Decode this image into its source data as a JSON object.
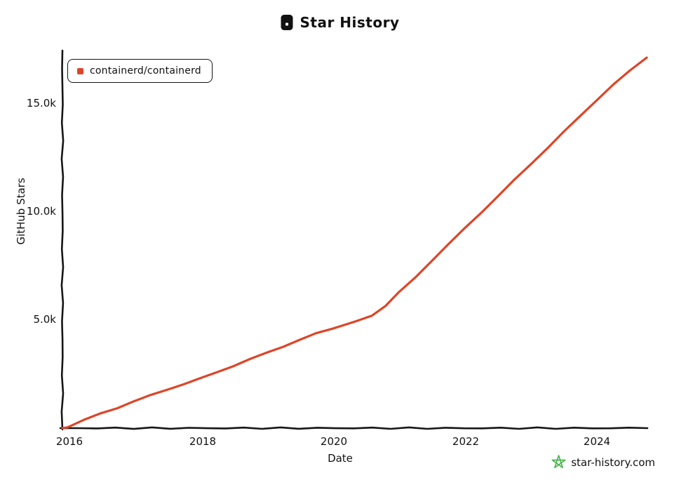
{
  "chart_data": {
    "type": "line",
    "title": "Star History",
    "xlabel": "Date",
    "ylabel": "GitHub Stars",
    "x_ticks": [
      "2016",
      "2018",
      "2020",
      "2022",
      "2024"
    ],
    "y_ticks": [
      "5.0k",
      "10.0k",
      "15.0k"
    ],
    "x_range": [
      2015.92,
      2024.75
    ],
    "y_range": [
      0,
      17500
    ],
    "grid": false,
    "legend_position": "top-left",
    "series": [
      {
        "name": "containerd/containerd",
        "color": "#dd4528",
        "x": [
          2015.92,
          2016.0,
          2016.25,
          2016.5,
          2016.75,
          2017.0,
          2017.25,
          2017.5,
          2017.75,
          2018.0,
          2018.25,
          2018.5,
          2018.75,
          2019.0,
          2019.25,
          2019.5,
          2019.75,
          2020.0,
          2020.2,
          2020.4,
          2020.6,
          2020.8,
          2021.0,
          2021.25,
          2021.5,
          2021.75,
          2022.0,
          2022.25,
          2022.5,
          2022.75,
          2023.0,
          2023.25,
          2023.5,
          2023.75,
          2024.0,
          2024.25,
          2024.5,
          2024.75
        ],
        "y": [
          0,
          60,
          380,
          680,
          950,
          1250,
          1520,
          1800,
          2050,
          2300,
          2600,
          2900,
          3200,
          3500,
          3800,
          4100,
          4400,
          4650,
          4830,
          5000,
          5250,
          5700,
          6300,
          7000,
          7800,
          8550,
          9300,
          10050,
          10800,
          11550,
          12300,
          13050,
          13800,
          14550,
          15300,
          16000,
          16650,
          17250
        ]
      }
    ]
  },
  "footer": {
    "watermark": "star-history.com",
    "star_color": "#4ab74e"
  },
  "colors": {
    "axis": "#161616",
    "text": "#111111",
    "background": "#ffffff"
  }
}
